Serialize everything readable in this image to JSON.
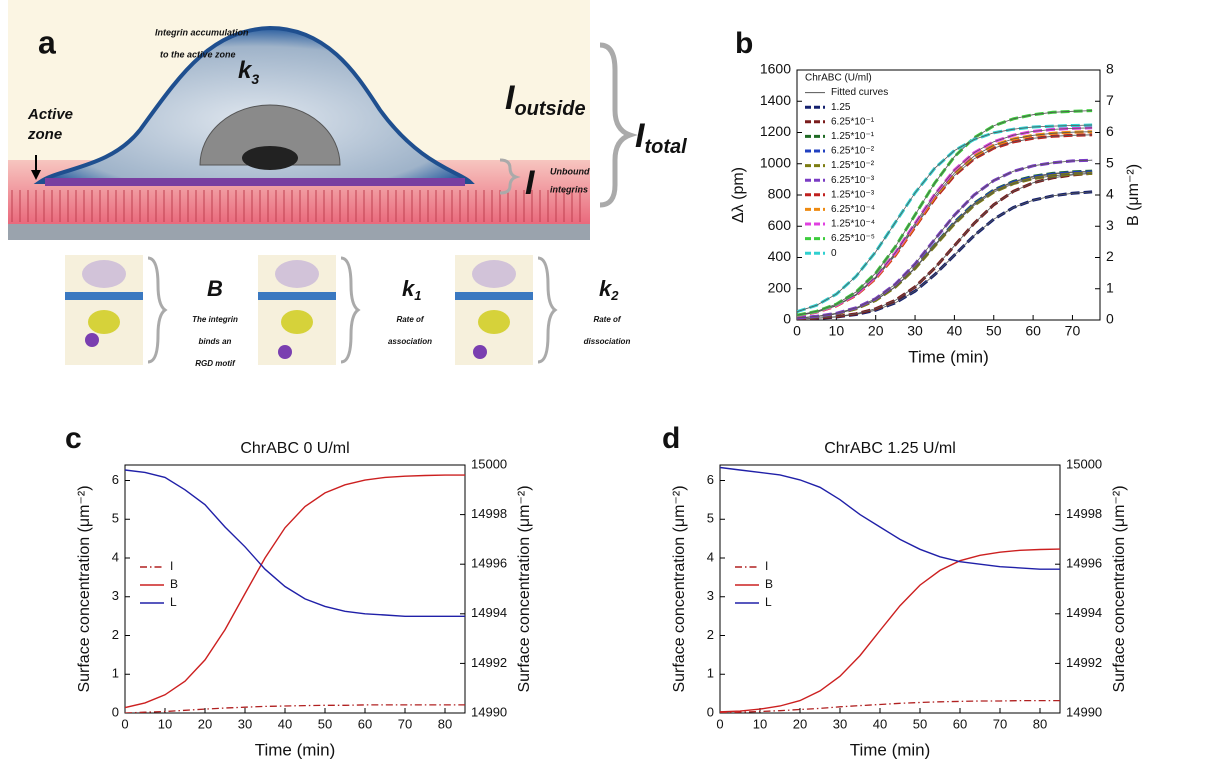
{
  "panel_a": {
    "panel_label": "a",
    "accumulation_text": [
      "Integrin accumulation",
      "to the active zone"
    ],
    "k3": {
      "symbol": "k",
      "subscript": "3"
    },
    "i_outside": {
      "symbol": "I",
      "subscript": "outside"
    },
    "active_zone": [
      "Active",
      "zone"
    ],
    "i_total": {
      "symbol": "I",
      "subscript": "total"
    },
    "i_unbound": {
      "symbol": "I",
      "note": [
        "Unbound",
        "integrins"
      ]
    },
    "states": [
      {
        "symbol": "B",
        "subscript": "",
        "text": [
          "The integrin",
          "binds an",
          "RGD motif"
        ]
      },
      {
        "symbol": "k",
        "subscript": "1",
        "text": [
          "Rate of",
          "association"
        ]
      },
      {
        "symbol": "k",
        "subscript": "2",
        "text": [
          "Rate of",
          "dissociation"
        ]
      }
    ]
  },
  "chart_data": [
    {
      "type": "line",
      "panel_label": "b",
      "x_label": "Time (min)",
      "y_label": "Δλ (pm)",
      "y2_label": "B (μm⁻²)",
      "legend": "upper left",
      "legend_title": "ChrABC (U/ml)",
      "fit_label": "Fitted curves",
      "fit_color": "#555555",
      "x": [
        0,
        5,
        10,
        15,
        20,
        25,
        30,
        35,
        40,
        45,
        50,
        55,
        60,
        65,
        70,
        75
      ],
      "xlim": [
        0,
        77
      ],
      "xticks": [
        0,
        10,
        20,
        30,
        40,
        50,
        60,
        70
      ],
      "ylim": [
        0,
        1600
      ],
      "yticks": [
        0,
        200,
        400,
        600,
        800,
        1000,
        1200,
        1400,
        1600
      ],
      "y2lim": [
        0,
        8
      ],
      "y2ticks": [
        0,
        1,
        2,
        3,
        4,
        5,
        6,
        7,
        8
      ],
      "series": [
        {
          "name": "1.25",
          "color": "#14206e",
          "style": "dash",
          "values": [
            6,
            10,
            19,
            35,
            63,
            110,
            185,
            290,
            415,
            540,
            645,
            720,
            767,
            795,
            811,
            820
          ]
        },
        {
          "name": "6.25*10⁻¹",
          "color": "#7a1c1c",
          "style": "dash",
          "values": [
            6,
            12,
            22,
            40,
            72,
            126,
            212,
            332,
            475,
            618,
            738,
            824,
            878,
            910,
            928,
            939
          ]
        },
        {
          "name": "1.25*10⁻¹",
          "color": "#1f6a24",
          "style": "dash",
          "values": [
            12,
            22,
            40,
            73,
            128,
            214,
            335,
            480,
            625,
            746,
            832,
            887,
            920,
            938,
            948,
            953
          ]
        },
        {
          "name": "6.25*10⁻²",
          "color": "#2140c0",
          "style": "dash",
          "values": [
            12,
            22,
            40,
            73,
            127,
            213,
            333,
            478,
            622,
            742,
            828,
            882,
            915,
            933,
            944,
            948
          ]
        },
        {
          "name": "1.25*10⁻²",
          "color": "#7d7d12",
          "style": "dash",
          "values": [
            12,
            22,
            40,
            72,
            126,
            211,
            330,
            473,
            615,
            734,
            819,
            873,
            905,
            923,
            934,
            938
          ]
        },
        {
          "name": "6.25*10⁻³",
          "color": "#7a3cc4",
          "style": "dash",
          "values": [
            13,
            24,
            43,
            78,
            137,
            230,
            359,
            515,
            671,
            800,
            893,
            952,
            987,
            1006,
            1018,
            1023
          ]
        },
        {
          "name": "1.25*10⁻³",
          "color": "#c0201e",
          "style": "dash",
          "values": [
            27,
            50,
            90,
            158,
            265,
            415,
            595,
            775,
            925,
            1032,
            1100,
            1140,
            1163,
            1176,
            1182,
            1185
          ]
        },
        {
          "name": "6.25*10⁻⁴",
          "color": "#ee8a10",
          "style": "dash",
          "values": [
            28,
            51,
            92,
            161,
            270,
            422,
            605,
            788,
            940,
            1049,
            1118,
            1159,
            1182,
            1195,
            1202,
            1205
          ]
        },
        {
          "name": "1.25*10⁻⁴",
          "color": "#e040e0",
          "style": "dash",
          "values": [
            28,
            52,
            94,
            164,
            275,
            431,
            618,
            804,
            960,
            1071,
            1141,
            1183,
            1207,
            1220,
            1226,
            1230
          ]
        },
        {
          "name": "6.25*10⁻⁵",
          "color": "#3ccc3c",
          "style": "dash",
          "values": [
            31,
            56,
            102,
            179,
            300,
            469,
            673,
            876,
            1045,
            1166,
            1243,
            1288,
            1314,
            1329,
            1336,
            1340
          ]
        },
        {
          "name": "0",
          "color": "#30d0d0",
          "style": "dash",
          "values": [
            53,
            95,
            166,
            279,
            436,
            625,
            814,
            971,
            1084,
            1155,
            1198,
            1221,
            1235,
            1241,
            1245,
            1248
          ]
        }
      ]
    },
    {
      "type": "line",
      "panel_label": "c",
      "title": "ChrABC 0 U/ml",
      "x_label": "Time (min)",
      "y_label": "Surface concentration (μm⁻²)",
      "y2_label": "Surface concentration (μm⁻²)",
      "y_label_color": "#cc2020",
      "y2_label_color": "#2020a8",
      "legend": "center left",
      "x": [
        0,
        5,
        10,
        15,
        20,
        25,
        30,
        35,
        40,
        45,
        50,
        55,
        60,
        65,
        70,
        75,
        80,
        85
      ],
      "xlim": [
        0,
        85
      ],
      "xticks": [
        0,
        10,
        20,
        30,
        40,
        50,
        60,
        70,
        80
      ],
      "ylim": [
        0,
        6.4
      ],
      "yticks": [
        0,
        1,
        2,
        3,
        4,
        5,
        6
      ],
      "y2lim": [
        14990,
        15000
      ],
      "y2ticks": [
        14990,
        14992,
        14994,
        14996,
        14998,
        15000
      ],
      "series": [
        {
          "name": "I",
          "color": "#b02020",
          "style": "dashdot",
          "values": [
            0,
            0.02,
            0.04,
            0.07,
            0.1,
            0.13,
            0.15,
            0.17,
            0.18,
            0.19,
            0.2,
            0.2,
            0.21,
            0.21,
            0.21,
            0.21,
            0.21,
            0.21
          ]
        },
        {
          "name": "B",
          "color": "#cc2020",
          "style": "solid",
          "values": [
            0.14,
            0.26,
            0.47,
            0.82,
            1.37,
            2.15,
            3.08,
            4.0,
            4.78,
            5.33,
            5.68,
            5.89,
            6.01,
            6.08,
            6.11,
            6.13,
            6.14,
            6.14
          ]
        },
        {
          "name": "L",
          "color": "#2020a8",
          "style": "solid",
          "axis": "y2",
          "values": [
            14999.8,
            14999.7,
            14999.5,
            14999.0,
            14998.4,
            14997.5,
            14996.7,
            14995.8,
            14995.1,
            14994.6,
            14994.3,
            14994.1,
            14994.0,
            14993.95,
            14993.9,
            14993.9,
            14993.9,
            14993.9
          ]
        }
      ]
    },
    {
      "type": "line",
      "panel_label": "d",
      "title": "ChrABC 1.25 U/ml",
      "x_label": "Time (min)",
      "y_label": "Surface concentration (μm⁻²)",
      "y2_label": "Surface concentration (μm⁻²)",
      "y_label_color": "#cc2020",
      "y2_label_color": "#2020a8",
      "legend": "center left",
      "x": [
        0,
        5,
        10,
        15,
        20,
        25,
        30,
        35,
        40,
        45,
        50,
        55,
        60,
        65,
        70,
        75,
        80,
        85
      ],
      "xlim": [
        0,
        85
      ],
      "xticks": [
        0,
        10,
        20,
        30,
        40,
        50,
        60,
        70,
        80
      ],
      "ylim": [
        0,
        6.4
      ],
      "yticks": [
        0,
        1,
        2,
        3,
        4,
        5,
        6
      ],
      "y2lim": [
        14990,
        15000
      ],
      "y2ticks": [
        14990,
        14992,
        14994,
        14996,
        14998,
        15000
      ],
      "series": [
        {
          "name": "I",
          "color": "#b02020",
          "style": "dashdot",
          "values": [
            0,
            0.02,
            0.04,
            0.06,
            0.09,
            0.12,
            0.16,
            0.19,
            0.22,
            0.25,
            0.27,
            0.29,
            0.3,
            0.31,
            0.31,
            0.32,
            0.32,
            0.32
          ]
        },
        {
          "name": "B",
          "color": "#cc2020",
          "style": "solid",
          "values": [
            0.03,
            0.05,
            0.1,
            0.18,
            0.32,
            0.57,
            0.95,
            1.48,
            2.13,
            2.77,
            3.3,
            3.68,
            3.93,
            4.07,
            4.15,
            4.2,
            4.22,
            4.23
          ]
        },
        {
          "name": "L",
          "color": "#2020a8",
          "style": "solid",
          "axis": "y2",
          "values": [
            14999.9,
            14999.8,
            14999.7,
            14999.6,
            14999.4,
            14999.1,
            14998.6,
            14998.0,
            14997.5,
            14997.0,
            14996.6,
            14996.3,
            14996.1,
            14996.0,
            14995.9,
            14995.85,
            14995.8,
            14995.8
          ]
        }
      ]
    }
  ]
}
